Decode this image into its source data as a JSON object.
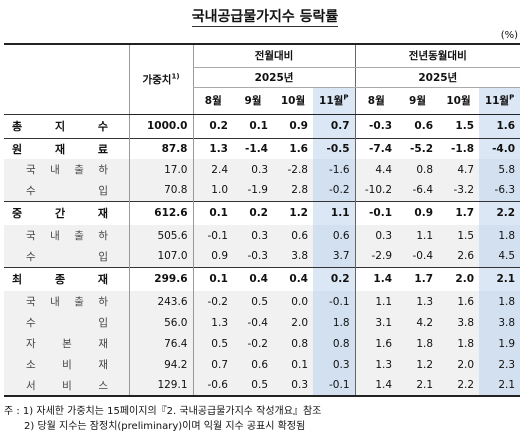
{
  "title": "국내공급물가지수 등락률",
  "unit": "(%)",
  "header": {
    "weight_label": "가중치",
    "weight_sup": "1)",
    "group_prev_month": "전월대비",
    "group_prev_year": "전년동월대비",
    "year": "2025년",
    "months": [
      "8월",
      "9월",
      "10월",
      "11월"
    ],
    "month_sup": "P"
  },
  "rows": [
    {
      "label": "총지수",
      "weight": "1000.0",
      "mom": [
        "0.2",
        "0.1",
        "0.9",
        "0.7"
      ],
      "yoy": [
        "-0.3",
        "0.6",
        "1.5",
        "1.6"
      ]
    },
    {
      "label": "원재료",
      "weight": "87.8",
      "mom": [
        "1.3",
        "-1.4",
        "1.6",
        "-0.5"
      ],
      "yoy": [
        "-7.4",
        "-5.2",
        "-1.8",
        "-4.0"
      ]
    },
    {
      "label": "국내출하",
      "weight": "17.0",
      "mom": [
        "2.4",
        "0.3",
        "-2.8",
        "-1.6"
      ],
      "yoy": [
        "4.4",
        "0.8",
        "4.7",
        "5.8"
      ]
    },
    {
      "label": "수입",
      "weight": "70.8",
      "mom": [
        "1.0",
        "-1.9",
        "2.8",
        "-0.2"
      ],
      "yoy": [
        "-10.2",
        "-6.4",
        "-3.2",
        "-6.3"
      ]
    },
    {
      "label": "중간재",
      "weight": "612.6",
      "mom": [
        "0.1",
        "0.2",
        "1.2",
        "1.1"
      ],
      "yoy": [
        "-0.1",
        "0.9",
        "1.7",
        "2.2"
      ]
    },
    {
      "label": "국내출하",
      "weight": "505.6",
      "mom": [
        "-0.1",
        "0.3",
        "0.6",
        "0.6"
      ],
      "yoy": [
        "0.3",
        "1.1",
        "1.5",
        "1.8"
      ]
    },
    {
      "label": "수입",
      "weight": "107.0",
      "mom": [
        "0.9",
        "-0.3",
        "3.8",
        "3.7"
      ],
      "yoy": [
        "-2.9",
        "-0.4",
        "2.6",
        "4.5"
      ]
    },
    {
      "label": "최종재",
      "weight": "299.6",
      "mom": [
        "0.1",
        "0.4",
        "0.4",
        "0.2"
      ],
      "yoy": [
        "1.4",
        "1.7",
        "2.0",
        "2.1"
      ]
    },
    {
      "label": "국내출하",
      "weight": "243.6",
      "mom": [
        "-0.2",
        "0.5",
        "0.0",
        "-0.1"
      ],
      "yoy": [
        "1.1",
        "1.3",
        "1.6",
        "1.8"
      ]
    },
    {
      "label": "수입",
      "weight": "56.0",
      "mom": [
        "1.3",
        "-0.4",
        "2.0",
        "1.8"
      ],
      "yoy": [
        "3.1",
        "4.2",
        "3.8",
        "3.8"
      ]
    },
    {
      "label": "자본재",
      "weight": "76.4",
      "mom": [
        "0.5",
        "-0.2",
        "0.8",
        "0.8"
      ],
      "yoy": [
        "1.6",
        "1.8",
        "1.8",
        "1.9"
      ]
    },
    {
      "label": "소비재",
      "weight": "94.2",
      "mom": [
        "0.7",
        "0.6",
        "0.1",
        "0.3"
      ],
      "yoy": [
        "1.3",
        "1.2",
        "2.0",
        "2.3"
      ]
    },
    {
      "label": "서비스",
      "weight": "129.1",
      "mom": [
        "-0.6",
        "0.5",
        "0.3",
        "-0.1"
      ],
      "yoy": [
        "1.4",
        "2.1",
        "2.2",
        "2.1"
      ]
    }
  ],
  "notes": [
    "주 : 1) 자세한 가중치는 15페이지의『2. 국내공급물가지수 작성개요』참조",
    "2) 당월 지수는 잠정치(preliminary)이며 익월 지수 공표시 확정됨"
  ]
}
